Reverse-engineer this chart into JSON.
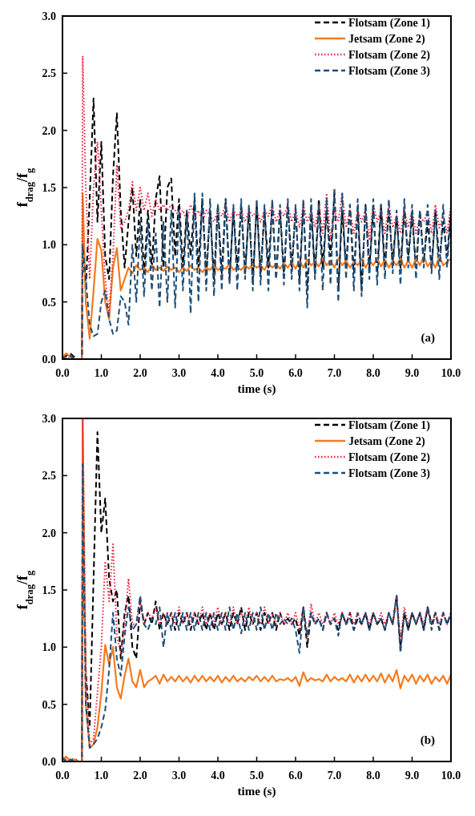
{
  "chart_data": [
    {
      "type": "line",
      "xlabel": "time (s)",
      "ylabel": "f$_{drag}$/f$_{g}$",
      "legend": "top right",
      "annotations": [
        "(a)"
      ],
      "xlim": [
        0,
        10
      ],
      "ylim": [
        0,
        3
      ],
      "xticks": [
        {
          "value": 0,
          "label": "0.0"
        },
        {
          "value": 1,
          "label": "1.0"
        },
        {
          "value": 2,
          "label": "2.0"
        },
        {
          "value": 3,
          "label": "3.0"
        },
        {
          "value": 4,
          "label": "4.0"
        },
        {
          "value": 5,
          "label": "5.0"
        },
        {
          "value": 6,
          "label": "6.0"
        },
        {
          "value": 7,
          "label": "7.0"
        },
        {
          "value": 8,
          "label": "8.0"
        },
        {
          "value": 9,
          "label": "9.0"
        },
        {
          "value": 10,
          "label": "10.0"
        }
      ],
      "yticks": [
        {
          "value": 0,
          "label": "0.0"
        },
        {
          "value": 0.5,
          "label": "0.5"
        },
        {
          "value": 1,
          "label": "1.0"
        },
        {
          "value": 1.5,
          "label": "1.5"
        },
        {
          "value": 2,
          "label": "2.0"
        },
        {
          "value": 2.5,
          "label": "2.5"
        },
        {
          "value": 3,
          "label": "3.0"
        }
      ],
      "x": [
        0,
        0.1,
        0.2,
        0.3,
        0.4,
        0.5,
        0.52,
        0.6,
        0.7,
        0.8,
        0.9,
        1,
        1.1,
        1.2,
        1.3,
        1.4,
        1.5,
        1.6,
        1.7,
        1.8,
        1.9,
        2,
        2.1,
        2.2,
        2.3,
        2.4,
        2.5,
        2.6,
        2.7,
        2.8,
        2.9,
        3,
        3.1,
        3.2,
        3.3,
        3.4,
        3.5,
        3.6,
        3.7,
        3.8,
        3.9,
        4,
        4.1,
        4.2,
        4.3,
        4.4,
        4.5,
        4.6,
        4.7,
        4.8,
        4.9,
        5,
        5.1,
        5.2,
        5.3,
        5.4,
        5.5,
        5.6,
        5.7,
        5.8,
        5.9,
        6,
        6.1,
        6.2,
        6.3,
        6.4,
        6.5,
        6.6,
        6.7,
        6.8,
        6.9,
        7,
        7.1,
        7.2,
        7.3,
        7.4,
        7.5,
        7.6,
        7.7,
        7.8,
        7.9,
        8,
        8.1,
        8.2,
        8.3,
        8.4,
        8.5,
        8.6,
        8.7,
        8.8,
        8.9,
        9,
        9.1,
        9.2,
        9.3,
        9.4,
        9.5,
        9.6,
        9.7,
        9.8,
        9.9,
        10
      ],
      "series": [
        {
          "name": "Flotsam (Zone 1)",
          "color": "#000000",
          "line_style": "dashed",
          "values": [
            0.02,
            0.03,
            0.05,
            0.02,
            0,
            0,
            1.0,
            0.6,
            1.4,
            2.28,
            1.2,
            1.9,
            0.9,
            0.7,
            1.6,
            2.15,
            1.3,
            0.8,
            1.2,
            1.5,
            0.9,
            1.4,
            0.75,
            1.3,
            0.8,
            1.4,
            1.6,
            0.8,
            1.5,
            1.58,
            0.9,
            1.4,
            0.8,
            1.3,
            0.9,
            1.4,
            0.8,
            1.4,
            0.75,
            1.3,
            0.7,
            1.35,
            0.75,
            1.4,
            0.7,
            1.3,
            0.8,
            1.35,
            0.75,
            1.3,
            0.7,
            1.35,
            0.75,
            1.3,
            0.8,
            1.35,
            0.7,
            1.3,
            0.75,
            1.35,
            0.8,
            1.3,
            0.7,
            1.35,
            0.6,
            1.3,
            0.75,
            1.4,
            0.8,
            1.3,
            0.9,
            1.45,
            0.6,
            1.3,
            0.8,
            1.35,
            0.75,
            1.3,
            0.6,
            1.35,
            0.8,
            1.3,
            0.75,
            1.35,
            0.8,
            1.3,
            0.85,
            1.25,
            0.8,
            1.3,
            0.9,
            1.25,
            0.8,
            1.3,
            0.85,
            1.2,
            0.8,
            1.3,
            0.85,
            1.2,
            0.9,
            1.3
          ]
        },
        {
          "name": "Jetsam (Zone 2)",
          "color": "#f47b20",
          "line_style": "solid",
          "values": [
            0.02,
            0.05,
            0.02,
            0,
            0,
            0,
            1.45,
            0.5,
            0.18,
            0.6,
            1.05,
            0.95,
            0.5,
            0.35,
            0.8,
            0.97,
            0.6,
            0.7,
            0.8,
            0.75,
            0.82,
            0.78,
            0.8,
            0.76,
            0.82,
            0.78,
            0.8,
            0.77,
            0.81,
            0.78,
            0.8,
            0.76,
            0.8,
            0.77,
            0.82,
            0.78,
            0.8,
            0.76,
            0.8,
            0.78,
            0.82,
            0.78,
            0.8,
            0.79,
            0.83,
            0.78,
            0.8,
            0.78,
            0.82,
            0.79,
            0.83,
            0.8,
            0.82,
            0.78,
            0.84,
            0.8,
            0.83,
            0.79,
            0.84,
            0.8,
            0.85,
            0.79,
            0.86,
            0.8,
            0.87,
            0.82,
            0.85,
            0.81,
            0.88,
            0.82,
            0.86,
            0.8,
            0.88,
            0.82,
            0.86,
            0.8,
            0.85,
            0.82,
            0.88,
            0.8,
            0.86,
            0.82,
            0.88,
            0.81,
            0.87,
            0.8,
            0.86,
            0.82,
            0.88,
            0.8,
            0.86,
            0.8,
            0.88,
            0.82,
            0.9,
            0.81,
            0.86,
            0.8,
            0.9,
            0.82,
            0.85,
            0.88
          ]
        },
        {
          "name": "Flotsam (Zone 2)",
          "color": "#e8203a",
          "line_style": "dotted",
          "values": [
            0,
            0.02,
            0,
            0,
            0,
            0,
            2.65,
            1.5,
            0.7,
            1.5,
            1.9,
            1.3,
            0.7,
            0.4,
            0.9,
            1.7,
            1.15,
            1.2,
            1.3,
            1.55,
            1.3,
            1.5,
            1.3,
            1.45,
            1.25,
            1.4,
            1.3,
            1.35,
            1.3,
            1.35,
            1.3,
            1.25,
            1.3,
            1.2,
            1.35,
            1.25,
            1.3,
            1.2,
            1.3,
            1.25,
            1.2,
            1.3,
            1.25,
            1.35,
            1.2,
            1.3,
            1.25,
            1.3,
            1.2,
            1.3,
            1.25,
            1.3,
            1.2,
            1.3,
            1.25,
            1.35,
            1.2,
            1.3,
            1.25,
            1.35,
            1.2,
            1.3,
            1.15,
            1.35,
            1.2,
            1.3,
            1.15,
            1.35,
            1.1,
            1.45,
            1.05,
            1.3,
            1.2,
            1.45,
            1.15,
            1.3,
            1.1,
            1.3,
            1.2,
            1.3,
            1.05,
            1.35,
            1.2,
            1.3,
            1.1,
            1.35,
            1.15,
            1.25,
            1.1,
            1.3,
            1.15,
            1.3,
            1.1,
            1.25,
            1.2,
            1.3,
            1.1,
            1.35,
            1.15,
            1.25,
            1.1,
            1.35
          ]
        },
        {
          "name": "Flotsam (Zone 3)",
          "color": "#1f4e79",
          "line_style": "dashed",
          "values": [
            0.02,
            0,
            0.03,
            0,
            0,
            0,
            1.0,
            0.7,
            0.3,
            0.2,
            0.22,
            0.5,
            0.6,
            0.35,
            0.22,
            0.25,
            0.55,
            0.5,
            0.3,
            1.0,
            0.5,
            1.2,
            0.55,
            1.2,
            0.6,
            1.1,
            0.45,
            1.2,
            0.5,
            1.3,
            0.45,
            1.3,
            0.6,
            1.3,
            0.4,
            1.45,
            0.5,
            1.45,
            0.6,
            1.4,
            0.55,
            1.35,
            0.6,
            1.4,
            0.65,
            1.35,
            0.6,
            1.4,
            0.7,
            1.35,
            0.6,
            1.4,
            0.65,
            1.35,
            0.6,
            1.4,
            0.7,
            1.35,
            0.65,
            1.4,
            0.7,
            1.35,
            0.6,
            1.4,
            0.45,
            1.4,
            0.7,
            1.35,
            0.6,
            1.4,
            0.65,
            1.5,
            0.5,
            1.45,
            0.7,
            1.35,
            0.6,
            1.4,
            0.55,
            1.35,
            0.7,
            1.4,
            0.65,
            1.35,
            0.7,
            1.4,
            0.75,
            1.3,
            0.65,
            1.4,
            0.8,
            1.35,
            0.7,
            1.3,
            0.8,
            1.35,
            0.75,
            1.3,
            0.7,
            1.35,
            0.8,
            1.3
          ]
        }
      ]
    },
    {
      "type": "line",
      "xlabel": "time (s)",
      "ylabel": "f$_{drag}$/f$_{g}$",
      "legend": "top right",
      "annotations": [
        "(b)"
      ],
      "xlim": [
        0,
        10
      ],
      "ylim": [
        0,
        3
      ],
      "xticks": [
        {
          "value": 0,
          "label": "0.0"
        },
        {
          "value": 1,
          "label": "1.0"
        },
        {
          "value": 2,
          "label": "2.0"
        },
        {
          "value": 3,
          "label": "3.0"
        },
        {
          "value": 4,
          "label": "4.0"
        },
        {
          "value": 5,
          "label": "5.0"
        },
        {
          "value": 6,
          "label": "6.0"
        },
        {
          "value": 7,
          "label": "7.0"
        },
        {
          "value": 8,
          "label": "8.0"
        },
        {
          "value": 9,
          "label": "9.0"
        },
        {
          "value": 10,
          "label": "10.0"
        }
      ],
      "yticks": [
        {
          "value": 0,
          "label": "0.0"
        },
        {
          "value": 0.5,
          "label": "0.5"
        },
        {
          "value": 1,
          "label": "1.0"
        },
        {
          "value": 1.5,
          "label": "1.5"
        },
        {
          "value": 2,
          "label": "2.0"
        },
        {
          "value": 2.5,
          "label": "2.5"
        },
        {
          "value": 3,
          "label": "3.0"
        }
      ],
      "x": [
        0,
        0.1,
        0.2,
        0.3,
        0.4,
        0.5,
        0.52,
        0.6,
        0.7,
        0.8,
        0.9,
        1,
        1.1,
        1.2,
        1.3,
        1.4,
        1.5,
        1.6,
        1.7,
        1.8,
        1.9,
        2,
        2.1,
        2.2,
        2.3,
        2.4,
        2.5,
        2.6,
        2.7,
        2.8,
        2.9,
        3,
        3.1,
        3.2,
        3.3,
        3.4,
        3.5,
        3.6,
        3.7,
        3.8,
        3.9,
        4,
        4.1,
        4.2,
        4.3,
        4.4,
        4.5,
        4.6,
        4.7,
        4.8,
        4.9,
        5,
        5.1,
        5.2,
        5.3,
        5.4,
        5.5,
        5.6,
        5.7,
        5.8,
        5.9,
        6,
        6.1,
        6.2,
        6.3,
        6.4,
        6.5,
        6.6,
        6.7,
        6.8,
        6.9,
        7,
        7.1,
        7.2,
        7.3,
        7.4,
        7.5,
        7.6,
        7.7,
        7.8,
        7.9,
        8,
        8.1,
        8.2,
        8.3,
        8.4,
        8.5,
        8.6,
        8.7,
        8.8,
        8.9,
        9,
        9.1,
        9.2,
        9.3,
        9.4,
        9.5,
        9.6,
        9.7,
        9.8,
        9.9,
        10
      ],
      "series": [
        {
          "name": "Flotsam (Zone 1)",
          "color": "#000000",
          "line_style": "dashed",
          "values": [
            0.02,
            0.04,
            0,
            0.03,
            0,
            0,
            2.0,
            0.8,
            0.3,
            1.6,
            2.88,
            2.0,
            2.3,
            1.6,
            1.4,
            1.5,
            0.9,
            1.3,
            1.45,
            1.0,
            0.9,
            1.4,
            1.2,
            1.3,
            1.2,
            1.4,
            1.15,
            1.3,
            1.2,
            1.3,
            1.15,
            1.3,
            1.2,
            1.3,
            1.15,
            1.3,
            1.2,
            1.3,
            1.15,
            1.3,
            1.15,
            1.3,
            1.2,
            1.3,
            1.15,
            1.3,
            1.2,
            1.35,
            1.15,
            1.3,
            1.2,
            1.3,
            1.15,
            1.3,
            1.2,
            1.3,
            1.15,
            1.3,
            1.2,
            1.25,
            1.2,
            1.25,
            1.1,
            1.35,
            1.0,
            1.3,
            1.2,
            1.25,
            1.15,
            1.3,
            1.2,
            1.25,
            1.15,
            1.3,
            1.2,
            1.3,
            1.15,
            1.25,
            1.2,
            1.3,
            1.15,
            1.3,
            1.2,
            1.25,
            1.15,
            1.3,
            1.2,
            1.45,
            1.0,
            1.3,
            1.15,
            1.3,
            1.2,
            1.3,
            1.15,
            1.35,
            1.2,
            1.3,
            1.15,
            1.3,
            1.2,
            1.3
          ]
        },
        {
          "name": "Jetsam (Zone 2)",
          "color": "#f47b20",
          "line_style": "solid",
          "values": [
            0.02,
            0.04,
            0,
            0.02,
            0,
            0,
            3.0,
            0.5,
            0.12,
            0.15,
            0.3,
            0.6,
            1.02,
            0.85,
            1.0,
            0.65,
            0.55,
            0.75,
            0.9,
            0.7,
            0.65,
            0.8,
            0.65,
            0.7,
            0.72,
            0.75,
            0.68,
            0.76,
            0.7,
            0.74,
            0.7,
            0.75,
            0.7,
            0.74,
            0.69,
            0.75,
            0.7,
            0.75,
            0.7,
            0.74,
            0.7,
            0.75,
            0.69,
            0.74,
            0.7,
            0.75,
            0.7,
            0.73,
            0.7,
            0.74,
            0.71,
            0.75,
            0.7,
            0.74,
            0.7,
            0.75,
            0.7,
            0.72,
            0.71,
            0.73,
            0.7,
            0.74,
            0.66,
            0.78,
            0.7,
            0.73,
            0.71,
            0.72,
            0.7,
            0.76,
            0.7,
            0.74,
            0.71,
            0.73,
            0.7,
            0.76,
            0.69,
            0.75,
            0.7,
            0.76,
            0.7,
            0.75,
            0.7,
            0.77,
            0.69,
            0.76,
            0.7,
            0.8,
            0.64,
            0.75,
            0.7,
            0.76,
            0.68,
            0.75,
            0.7,
            0.76,
            0.68,
            0.74,
            0.7,
            0.75,
            0.68,
            0.76
          ]
        },
        {
          "name": "Flotsam (Zone 2)",
          "color": "#e8203a",
          "line_style": "dotted",
          "values": [
            0,
            0.02,
            0,
            0,
            0,
            0,
            3.0,
            0.8,
            0.15,
            0.2,
            0.6,
            1.0,
            1.75,
            1.4,
            1.9,
            1.1,
            0.95,
            1.2,
            1.6,
            1.2,
            1.2,
            1.4,
            1.2,
            1.3,
            1.25,
            1.35,
            1.2,
            1.3,
            1.2,
            1.3,
            1.2,
            1.35,
            1.2,
            1.3,
            1.2,
            1.3,
            1.2,
            1.35,
            1.2,
            1.3,
            1.2,
            1.35,
            1.2,
            1.3,
            1.2,
            1.35,
            1.2,
            1.3,
            1.2,
            1.35,
            1.2,
            1.3,
            1.2,
            1.35,
            1.2,
            1.3,
            1.2,
            1.3,
            1.2,
            1.3,
            1.2,
            1.3,
            1.15,
            1.35,
            1.05,
            1.38,
            1.2,
            1.3,
            1.2,
            1.3,
            1.2,
            1.3,
            1.2,
            1.3,
            1.2,
            1.3,
            1.2,
            1.3,
            1.2,
            1.3,
            1.2,
            1.3,
            1.2,
            1.3,
            1.2,
            1.3,
            1.2,
            1.45,
            1.05,
            1.35,
            1.2,
            1.3,
            1.2,
            1.3,
            1.2,
            1.35,
            1.2,
            1.3,
            1.2,
            1.3,
            1.2,
            1.3
          ]
        },
        {
          "name": "Flotsam (Zone 3)",
          "color": "#1f4e79",
          "line_style": "dashed",
          "values": [
            0.03,
            0,
            0.02,
            0,
            0,
            0,
            2.6,
            0.5,
            0.12,
            0.15,
            0.2,
            0.3,
            0.45,
            0.8,
            1.3,
            0.9,
            0.75,
            1.1,
            1.35,
            1.15,
            1.2,
            1.45,
            1.2,
            1.15,
            1.25,
            1.2,
            1.35,
            1.0,
            1.3,
            1.15,
            1.3,
            1.15,
            1.3,
            1.15,
            1.3,
            1.15,
            1.3,
            1.15,
            1.3,
            1.15,
            1.3,
            1.15,
            1.3,
            1.15,
            1.35,
            1.15,
            1.3,
            1.12,
            1.3,
            1.15,
            1.3,
            1.15,
            1.35,
            1.15,
            1.3,
            1.15,
            1.3,
            1.2,
            1.25,
            1.2,
            1.25,
            1.15,
            0.95,
            1.35,
            1.1,
            1.3,
            1.2,
            1.25,
            1.15,
            1.3,
            1.2,
            1.25,
            1.1,
            1.3,
            1.2,
            1.25,
            1.15,
            1.3,
            1.2,
            1.3,
            1.15,
            1.3,
            1.2,
            1.25,
            1.15,
            1.3,
            1.2,
            1.45,
            0.95,
            1.3,
            1.15,
            1.3,
            1.2,
            1.3,
            1.15,
            1.35,
            1.15,
            1.3,
            1.15,
            1.3,
            1.2,
            1.3
          ]
        }
      ]
    }
  ]
}
